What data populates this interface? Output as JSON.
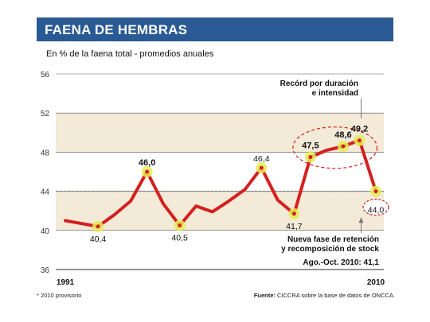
{
  "header": {
    "title": "FAENA DE HEMBRAS"
  },
  "subtitle": "En % de la faena total - promedios anuales",
  "colors": {
    "header_bg": "#2a5a93",
    "band": "#f3ead8",
    "line": "#d42020",
    "marker": "#e4ec52",
    "highlight_ring": "#d42020"
  },
  "chart_data": {
    "type": "line",
    "title": "FAENA DE HEMBRAS",
    "subtitle": "En % de la faena total - promedios anuales",
    "xlabel": "",
    "ylabel": "",
    "x": [
      1991,
      1992,
      1993,
      1994,
      1995,
      1996,
      1997,
      1998,
      1999,
      2000,
      2001,
      2002,
      2003,
      2004,
      2005,
      2006,
      2007,
      2008,
      2009,
      2010
    ],
    "x_tick_labels": [
      "1991",
      "2010"
    ],
    "series": [
      {
        "values": [
          41.0,
          40.7,
          40.4,
          41.6,
          43.0,
          46.0,
          42.7,
          40.5,
          42.5,
          41.9,
          43.0,
          44.2,
          46.4,
          43.1,
          41.7,
          47.5,
          48.2,
          48.6,
          49.2,
          44.0
        ]
      }
    ],
    "ylim": [
      36,
      56
    ],
    "yticks": [
      36,
      40,
      44,
      48,
      52,
      56
    ],
    "reference_line": 44,
    "grid": true,
    "data_labels": [
      {
        "year": 1993,
        "text": "40,4",
        "bold": false
      },
      {
        "year": 1996,
        "text": "46,0",
        "bold": true
      },
      {
        "year": 1998,
        "text": "40,5",
        "bold": false
      },
      {
        "year": 2003,
        "text": "46,4",
        "bold": false
      },
      {
        "year": 2005,
        "text": "41,7",
        "bold": false
      },
      {
        "year": 2006,
        "text": "47,5",
        "bold": true
      },
      {
        "year": 2008,
        "text": "48,6",
        "bold": true
      },
      {
        "year": 2009,
        "text": "49,2",
        "bold": true
      },
      {
        "year": 2010,
        "text": "44,0",
        "bold": false
      }
    ],
    "marker_years": [
      1993,
      1996,
      1998,
      2003,
      2005,
      2006,
      2008,
      2009,
      2010
    ],
    "annotations": {
      "record": [
        "Recórd por duración",
        "e intensidad"
      ],
      "retention": [
        "Nueva fase de retención",
        "y recomposición de stock"
      ],
      "ago_oct": "Ago.-Oct. 2010: 41,1"
    }
  },
  "footnote": "* 2010 provisorio",
  "source": {
    "label": "Fuente:",
    "text": " CICCRA sobre la base de datos de ONCCA."
  }
}
